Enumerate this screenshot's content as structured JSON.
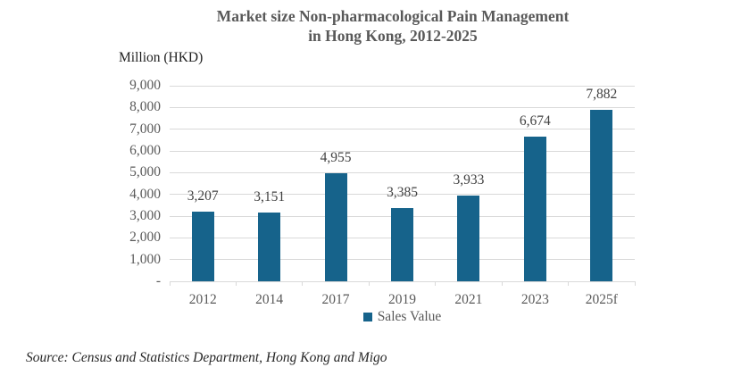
{
  "chart_data": {
    "type": "bar",
    "title_lines": [
      "Market size Non-pharmacological Pain Management",
      "in Hong Kong, 2012-2025"
    ],
    "unit_label": "Million (HKD)",
    "categories": [
      "2012",
      "2014",
      "2017",
      "2019",
      "2021",
      "2023",
      "2025f"
    ],
    "series": [
      {
        "name": "Sales Value",
        "values": [
          3207,
          3151,
          4955,
          3385,
          3933,
          6674,
          7882
        ]
      }
    ],
    "ylim": [
      0,
      9000
    ],
    "ytick_step": 1000,
    "zero_tick_label": "-",
    "grid": true,
    "legend_position": "bottom"
  },
  "source_note": "Source: Census and Statistics Department, Hong Kong and Migo",
  "colors": {
    "background": "#ffffff",
    "bar": "#16638b",
    "gridline": "#d9d9d9",
    "axis_text": "#595959",
    "data_label": "#404040",
    "title_text": "#595959",
    "unit_text": "#1f1f1f",
    "legend_text": "#595959",
    "source_text": "#262626"
  }
}
